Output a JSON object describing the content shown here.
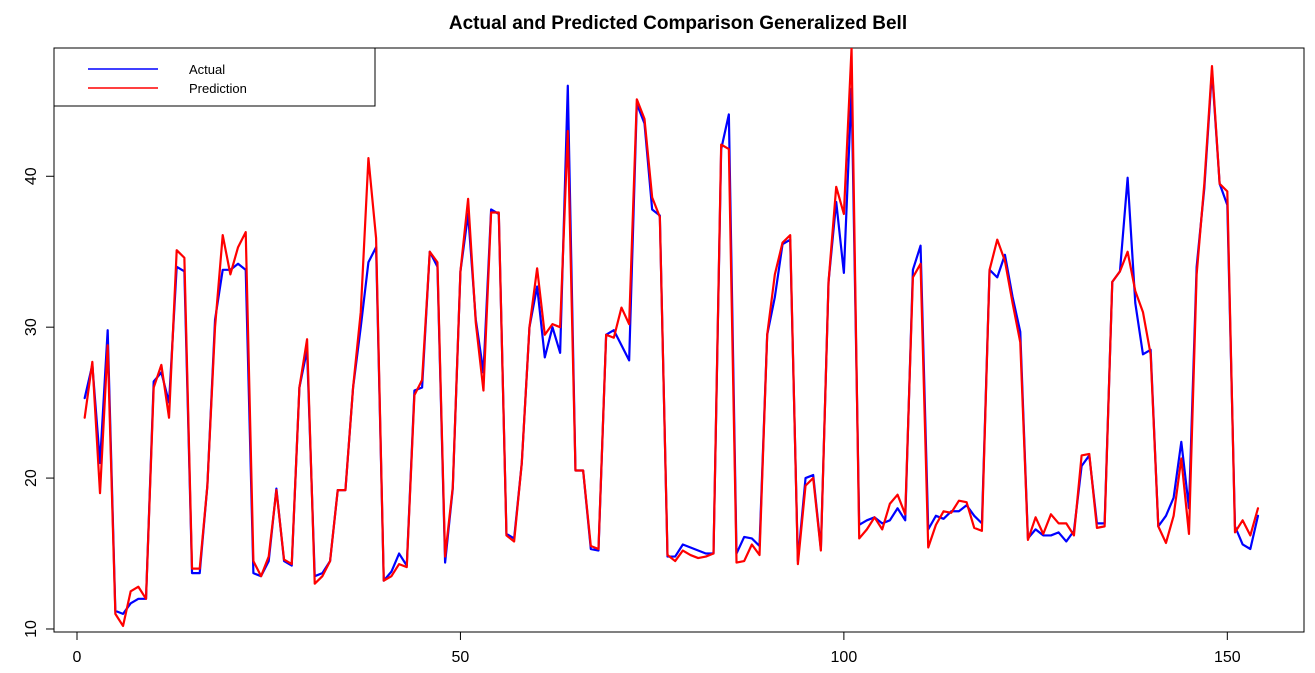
{
  "chart_data": {
    "type": "line",
    "title": "Actual and Predicted Comparison Generalized Bell",
    "xlabel": "",
    "ylabel": "",
    "xlim": [
      -3,
      160
    ],
    "ylim": [
      9.8,
      48.5
    ],
    "x_ticks": [
      0,
      50,
      100,
      150
    ],
    "y_ticks": [
      10,
      20,
      30,
      40
    ],
    "x_tick_labels": [
      "0",
      "50",
      "100",
      "150"
    ],
    "y_tick_labels": [
      "10",
      "20",
      "30",
      "40"
    ],
    "grid": false,
    "legend_position": "top-left",
    "x_start": 1,
    "series": [
      {
        "name": "Actual",
        "color": "#0000ff",
        "values": [
          25.3,
          27.5,
          21.0,
          29.8,
          11.2,
          11.0,
          11.7,
          12.0,
          12.0,
          26.4,
          27.0,
          25.0,
          34.0,
          33.7,
          13.7,
          13.7,
          19.5,
          30.5,
          33.8,
          33.8,
          34.2,
          33.8,
          13.7,
          13.5,
          14.5,
          19.3,
          14.5,
          14.2,
          26.0,
          28.5,
          13.5,
          13.7,
          14.5,
          19.2,
          19.2,
          26.0,
          30.0,
          34.3,
          35.3,
          13.2,
          13.8,
          15.0,
          14.2,
          25.8,
          26.0,
          35.0,
          34.0,
          14.4,
          19.3,
          33.7,
          37.5,
          30.5,
          27.0,
          37.8,
          37.5,
          16.3,
          16.0,
          21.0,
          30.0,
          32.7,
          28.0,
          30.0,
          28.3,
          46.0,
          20.5,
          20.5,
          15.3,
          15.2,
          29.5,
          29.8,
          28.8,
          27.8,
          44.8,
          43.5,
          37.8,
          37.4,
          14.8,
          14.8,
          15.6,
          15.4,
          15.2,
          15.0,
          15.0,
          41.8,
          44.1,
          15.0,
          16.1,
          16.0,
          15.5,
          29.5,
          32.0,
          35.5,
          35.8,
          14.5,
          20.0,
          20.2,
          15.3,
          33.0,
          38.3,
          33.6,
          45.8,
          16.9,
          17.2,
          17.4,
          17.0,
          17.2,
          18.0,
          17.2,
          33.8,
          35.4,
          16.6,
          17.5,
          17.3,
          17.8,
          17.8,
          18.2,
          17.5,
          17.0,
          33.8,
          33.3,
          34.8,
          32.0,
          29.7,
          16.0,
          16.6,
          16.2,
          16.2,
          16.4,
          15.8,
          16.5,
          20.8,
          21.5,
          17.0,
          17.0,
          33.0,
          33.7,
          39.9,
          31.6,
          28.2,
          28.5,
          16.8,
          17.5,
          18.7,
          22.4,
          18.0,
          34.0,
          39.2,
          47.0,
          39.5,
          38.1,
          16.8,
          15.6,
          15.3,
          17.5
        ]
      },
      {
        "name": "Prediction",
        "color": "#ff0000",
        "values": [
          24.0,
          27.7,
          19.0,
          28.8,
          11.0,
          10.2,
          12.5,
          12.8,
          12.0,
          26.0,
          27.5,
          24.0,
          35.1,
          34.6,
          14.0,
          14.0,
          19.5,
          30.0,
          36.1,
          33.5,
          35.3,
          36.3,
          14.5,
          13.5,
          14.8,
          19.2,
          14.6,
          14.3,
          26.0,
          29.2,
          13.0,
          13.5,
          14.5,
          19.2,
          19.2,
          26.0,
          31.0,
          41.2,
          35.9,
          13.2,
          13.5,
          14.3,
          14.1,
          25.5,
          26.5,
          35.0,
          34.3,
          14.8,
          19.4,
          33.7,
          38.5,
          30.3,
          25.8,
          37.6,
          37.6,
          16.2,
          15.8,
          21.0,
          30.0,
          33.9,
          29.5,
          30.2,
          30.0,
          43.0,
          20.5,
          20.5,
          15.5,
          15.3,
          29.5,
          29.3,
          31.3,
          30.2,
          45.1,
          43.8,
          38.6,
          37.3,
          14.9,
          14.5,
          15.2,
          14.9,
          14.7,
          14.8,
          15.0,
          42.1,
          41.8,
          14.4,
          14.5,
          15.6,
          14.9,
          29.5,
          33.5,
          35.6,
          36.1,
          14.3,
          19.5,
          20.0,
          15.2,
          33.0,
          39.3,
          37.5,
          48.5,
          16.0,
          16.6,
          17.4,
          16.6,
          18.3,
          18.9,
          17.6,
          33.3,
          34.2,
          15.4,
          16.9,
          17.8,
          17.7,
          18.5,
          18.4,
          16.7,
          16.5,
          33.8,
          35.8,
          34.4,
          31.6,
          29.0,
          15.9,
          17.4,
          16.3,
          17.6,
          17.0,
          17.0,
          16.2,
          21.5,
          21.6,
          16.7,
          16.8,
          33.0,
          33.7,
          35.0,
          32.4,
          31.0,
          28.2,
          16.8,
          15.7,
          17.5,
          21.3,
          16.3,
          33.5,
          39.5,
          47.3,
          39.5,
          39.0,
          16.4,
          17.2,
          16.2,
          18.0
        ]
      }
    ]
  }
}
